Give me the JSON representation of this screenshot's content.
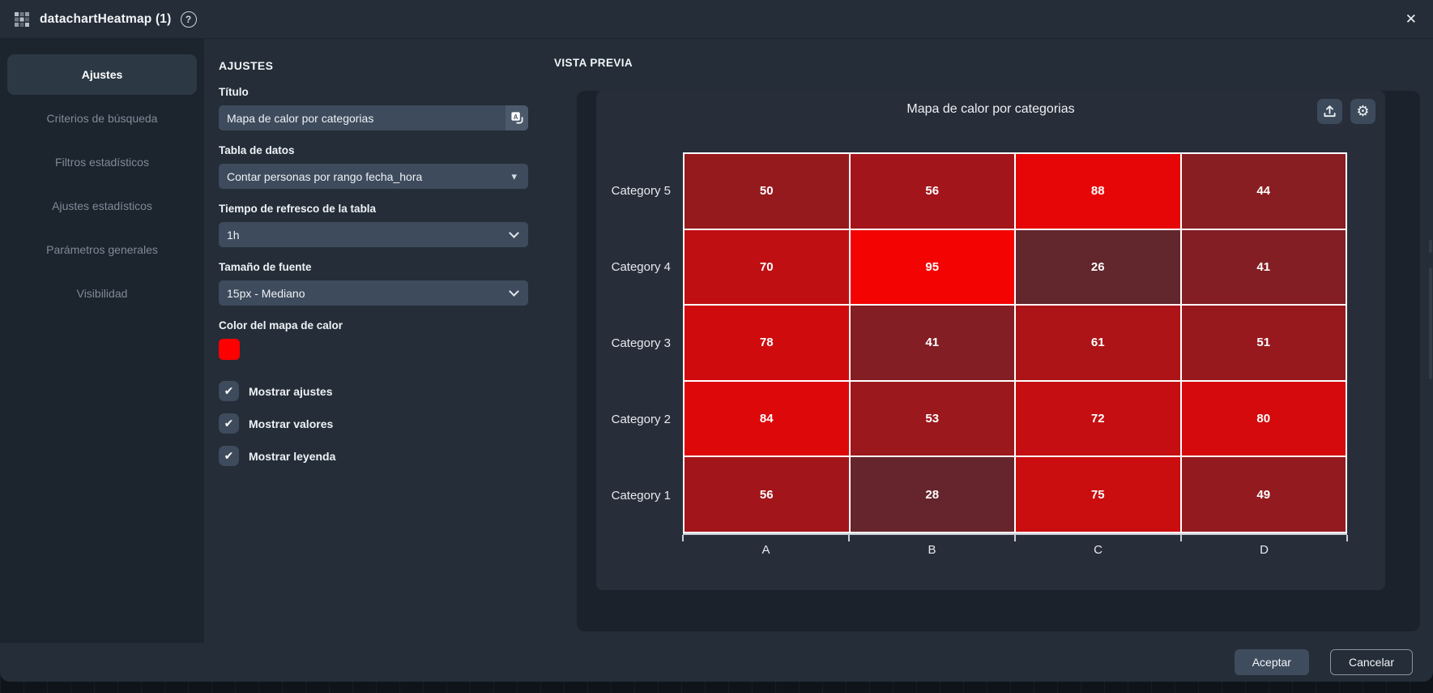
{
  "header": {
    "title": "datachartHeatmap (1)"
  },
  "icons": {
    "help": "?",
    "close": "✕",
    "caret_down": "▾",
    "check": "✔",
    "gear": "⚙"
  },
  "sidebar": {
    "items": [
      {
        "label": "Ajustes",
        "active": true
      },
      {
        "label": "Criterios de búsqueda",
        "active": false
      },
      {
        "label": "Filtros estadísticos",
        "active": false
      },
      {
        "label": "Ajustes estadísticos",
        "active": false
      },
      {
        "label": "Parámetros generales",
        "active": false
      },
      {
        "label": "Visibilidad",
        "active": false
      }
    ]
  },
  "form": {
    "heading": "AJUSTES",
    "title_field": {
      "label": "Título",
      "value": "Mapa de calor por categorias"
    },
    "data_table_field": {
      "label": "Tabla de datos",
      "value": "Contar personas por rango fecha_hora"
    },
    "refresh_field": {
      "label": "Tiempo de refresco de la tabla",
      "value": "1h"
    },
    "font_size_field": {
      "label": "Tamaño de fuente",
      "value": "15px - Mediano"
    },
    "color_field": {
      "label": "Color del mapa de calor",
      "value": "#ff0000"
    },
    "checkboxes": [
      {
        "label": "Mostrar ajustes",
        "checked": true
      },
      {
        "label": "Mostrar valores",
        "checked": true
      },
      {
        "label": "Mostrar leyenda",
        "checked": true
      }
    ]
  },
  "preview": {
    "heading": "VISTA PREVIA"
  },
  "chart_data": {
    "type": "heatmap",
    "title": "Mapa de calor por categorias",
    "x_categories": [
      "A",
      "B",
      "C",
      "D"
    ],
    "y_categories": [
      "Category 5",
      "Category 4",
      "Category 3",
      "Category 2",
      "Category 1"
    ],
    "values": [
      [
        50,
        56,
        88,
        44
      ],
      [
        70,
        95,
        26,
        41
      ],
      [
        78,
        41,
        61,
        51
      ],
      [
        84,
        53,
        72,
        80
      ],
      [
        56,
        28,
        75,
        49
      ]
    ],
    "cell_colors": [
      [
        "#951a1e",
        "#a2161b",
        "#e60607",
        "#881d22"
      ],
      [
        "#bf0f12",
        "#f40303",
        "#62262d",
        "#821e24"
      ],
      [
        "#d00b0d",
        "#821e24",
        "#ac1418",
        "#97191e"
      ],
      [
        "#dd080a",
        "#9b181d",
        "#c40e11",
        "#d50a0c"
      ],
      [
        "#a2161b",
        "#66252c",
        "#ca0d0f",
        "#931a1f"
      ]
    ],
    "value_range": [
      0,
      100
    ],
    "color_low": "#2b333d",
    "color_high": "#ff0000",
    "values_shown": true,
    "grid_lines": "white"
  },
  "footer": {
    "accept_label": "Aceptar",
    "cancel_label": "Cancelar"
  }
}
